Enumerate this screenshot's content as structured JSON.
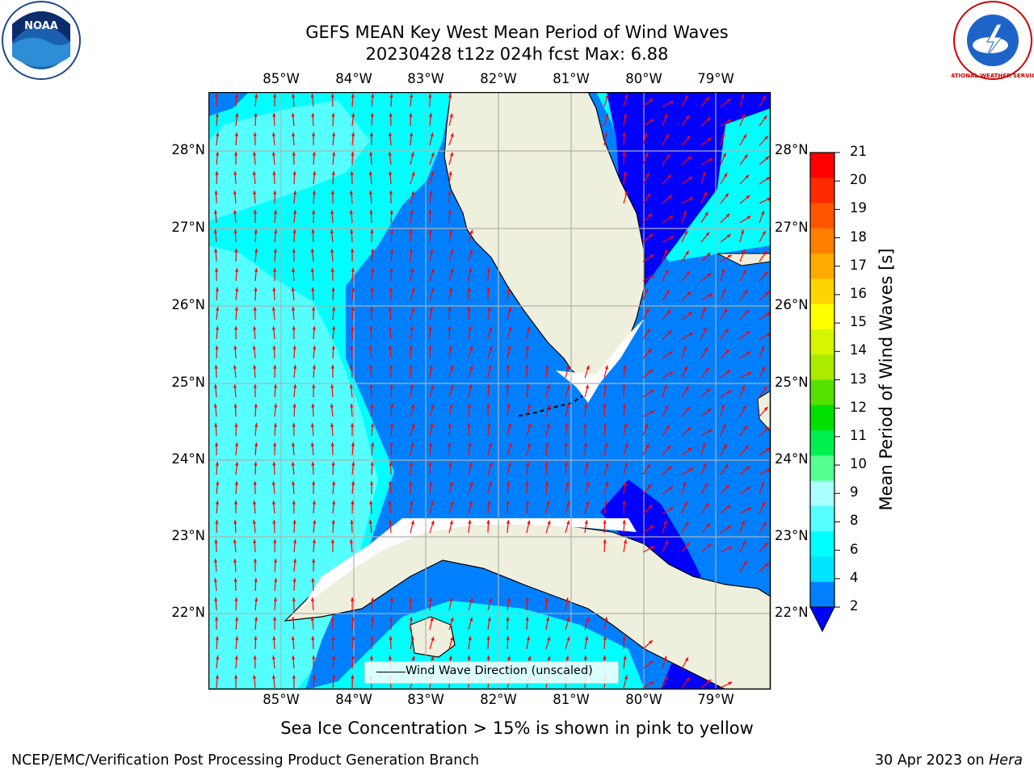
{
  "header": {
    "title_line1": "GEFS MEAN Key West Mean Period of Wind Waves",
    "title_line2": "20230428 t12z 024h fcst   Max: 6.88"
  },
  "logos": {
    "left": {
      "name": "noaa-logo",
      "text": "NOAA"
    },
    "right": {
      "name": "nws-logo",
      "text": "NATIONAL WEATHER SERVICE"
    }
  },
  "map": {
    "lon_ticks": [
      "85°W",
      "84°W",
      "83°W",
      "82°W",
      "81°W",
      "80°W",
      "79°W"
    ],
    "lat_ticks": [
      "28°N",
      "27°N",
      "26°N",
      "25°N",
      "24°N",
      "23°N",
      "22°N"
    ],
    "legend_label": "Wind Wave Direction (unscaled)",
    "land_color": "#efefdd",
    "arrow_color": "#ff0000",
    "grid": "on"
  },
  "colorbar": {
    "label": "Mean Period of Wind Waves [s]",
    "ticks": [
      "21",
      "20",
      "19",
      "18",
      "17",
      "16",
      "15",
      "14",
      "13",
      "12",
      "11",
      "10",
      "9",
      "8",
      "6",
      "4",
      "2"
    ],
    "colors": [
      "#ff0000",
      "#ff2a00",
      "#ff5500",
      "#ff8000",
      "#ffaa00",
      "#ffd500",
      "#ffff00",
      "#d5f500",
      "#aaeb00",
      "#55e000",
      "#00e000",
      "#00f050",
      "#55ff90",
      "#aaffff",
      "#55ffff",
      "#00ffff",
      "#00e5ff",
      "#0080ff"
    ],
    "extend_color": "#0000ff"
  },
  "footer": {
    "note": "Sea Ice Concentration > 15% is shown in pink to yellow",
    "left": "NCEP/EMC/Verification Post Processing Product Generation Branch",
    "date": "30 Apr 2023 on",
    "host": "Hera"
  }
}
